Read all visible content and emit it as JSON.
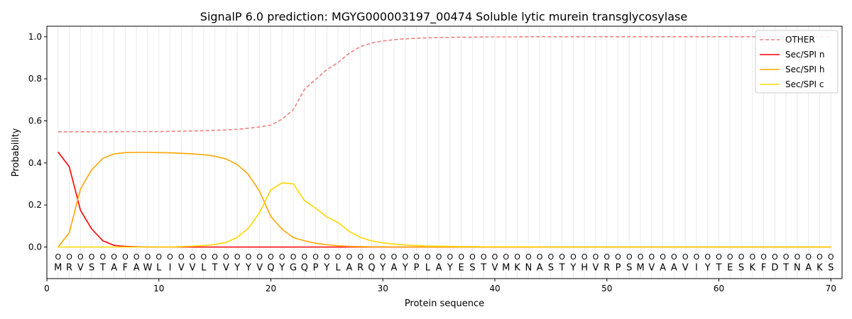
{
  "chart_data": {
    "type": "line",
    "title": "SignalP 6.0 prediction: MGYG000003197_00474 Soluble lytic murein transglycosylase",
    "xlabel": "Protein sequence",
    "ylabel": "Probability",
    "xlim": [
      0,
      71
    ],
    "ylim": [
      -0.15,
      1.05
    ],
    "x_ticks": [
      0,
      10,
      20,
      30,
      40,
      50,
      60,
      70
    ],
    "y_ticks": [
      0.0,
      0.2,
      0.4,
      0.6,
      0.8,
      1.0
    ],
    "y_tick_labels": [
      "0.0",
      "0.2",
      "0.4",
      "0.6",
      "0.8",
      "1.0"
    ],
    "grid": "vertical lines at each residue",
    "legend_position": "top-right",
    "sequence": [
      "M",
      "R",
      "V",
      "S",
      "T",
      "A",
      "F",
      "A",
      "W",
      "L",
      "I",
      "V",
      "V",
      "L",
      "T",
      "V",
      "Y",
      "Y",
      "V",
      "Q",
      "Y",
      "G",
      "Q",
      "P",
      "Y",
      "L",
      "A",
      "R",
      "Q",
      "Y",
      "A",
      "Y",
      "P",
      "L",
      "A",
      "Y",
      "E",
      "S",
      "T",
      "V",
      "M",
      "K",
      "N",
      "A",
      "S",
      "T",
      "Y",
      "H",
      "V",
      "R",
      "P",
      "S",
      "M",
      "V",
      "A",
      "A",
      "V",
      "I",
      "Y",
      "T",
      "E",
      "S",
      "K",
      "F",
      "D",
      "T",
      "N",
      "A",
      "K",
      "S"
    ],
    "region_labels": [
      "O",
      "O",
      "O",
      "O",
      "O",
      "O",
      "O",
      "O",
      "O",
      "O",
      "O",
      "O",
      "O",
      "O",
      "O",
      "O",
      "O",
      "O",
      "O",
      "O",
      "O",
      "O",
      "O",
      "O",
      "O",
      "O",
      "O",
      "O",
      "O",
      "O",
      "O",
      "O",
      "O",
      "O",
      "O",
      "O",
      "O",
      "O",
      "O",
      "O",
      "O",
      "O",
      "O",
      "O",
      "O",
      "O",
      "O",
      "O",
      "O",
      "O",
      "O",
      "O",
      "O",
      "O",
      "O",
      "O",
      "O",
      "O",
      "O",
      "O",
      "O",
      "O",
      "O",
      "O",
      "O",
      "O",
      "O",
      "O",
      "O",
      "O"
    ],
    "series": [
      {
        "name": "OTHER",
        "color": "#f08080",
        "dash": true,
        "values": [
          0.548,
          0.548,
          0.548,
          0.548,
          0.548,
          0.548,
          0.549,
          0.549,
          0.549,
          0.549,
          0.55,
          0.551,
          0.552,
          0.553,
          0.555,
          0.557,
          0.56,
          0.565,
          0.571,
          0.58,
          0.608,
          0.653,
          0.75,
          0.797,
          0.844,
          0.877,
          0.922,
          0.953,
          0.97,
          0.98,
          0.986,
          0.99,
          0.993,
          0.995,
          0.996,
          0.997,
          0.998,
          0.998,
          0.999,
          0.999,
          0.999,
          0.999,
          1.0,
          1.0,
          1.0,
          1.0,
          1.0,
          1.0,
          1.0,
          1.0,
          1.0,
          1.0,
          1.0,
          1.0,
          1.0,
          1.0,
          1.0,
          1.0,
          1.0,
          1.0,
          1.0,
          1.0,
          1.0,
          1.0,
          1.0,
          1.0,
          1.0,
          1.0,
          1.0,
          1.0
        ]
      },
      {
        "name": "Sec/SPI n",
        "color": "#ff0000",
        "dash": false,
        "values": [
          0.452,
          0.382,
          0.175,
          0.086,
          0.03,
          0.008,
          0.003,
          0.001,
          0.0,
          0.0,
          0.0,
          0.0,
          0.0,
          0.0,
          0.0,
          0.0,
          0.0,
          0.0,
          0.0,
          0.0,
          0.0,
          0.0,
          0.0,
          0.0,
          0.0,
          0.0,
          0.0,
          0.0,
          0.0,
          0.0,
          0.0,
          0.0,
          0.0,
          0.0,
          0.0,
          0.0,
          0.0,
          0.0,
          0.0,
          0.0,
          0.0,
          0.0,
          0.0,
          0.0,
          0.0,
          0.0,
          0.0,
          0.0,
          0.0,
          0.0,
          0.0,
          0.0,
          0.0,
          0.0,
          0.0,
          0.0,
          0.0,
          0.0,
          0.0,
          0.0,
          0.0,
          0.0,
          0.0,
          0.0,
          0.0,
          0.0,
          0.0,
          0.0,
          0.0,
          0.0
        ]
      },
      {
        "name": "Sec/SPI h",
        "color": "#ffa500",
        "dash": false,
        "values": [
          0.0,
          0.068,
          0.276,
          0.367,
          0.422,
          0.443,
          0.449,
          0.45,
          0.45,
          0.449,
          0.448,
          0.446,
          0.443,
          0.439,
          0.432,
          0.419,
          0.392,
          0.345,
          0.264,
          0.145,
          0.085,
          0.045,
          0.03,
          0.018,
          0.011,
          0.006,
          0.003,
          0.002,
          0.001,
          0.001,
          0.0,
          0.0,
          0.0,
          0.0,
          0.0,
          0.0,
          0.0,
          0.0,
          0.0,
          0.0,
          0.0,
          0.0,
          0.0,
          0.0,
          0.0,
          0.0,
          0.0,
          0.0,
          0.0,
          0.0,
          0.0,
          0.0,
          0.0,
          0.0,
          0.0,
          0.0,
          0.0,
          0.0,
          0.0,
          0.0,
          0.0,
          0.0,
          0.0,
          0.0,
          0.0,
          0.0,
          0.0,
          0.0,
          0.0,
          0.0
        ]
      },
      {
        "name": "Sec/SPI c",
        "color": "#ffd700",
        "dash": false,
        "values": [
          0.0,
          0.0,
          0.0,
          0.0,
          0.0,
          0.0,
          0.0,
          0.0,
          0.0,
          0.0,
          0.0,
          0.002,
          0.004,
          0.007,
          0.012,
          0.022,
          0.046,
          0.09,
          0.165,
          0.272,
          0.305,
          0.301,
          0.221,
          0.185,
          0.143,
          0.117,
          0.074,
          0.046,
          0.029,
          0.02,
          0.014,
          0.01,
          0.007,
          0.005,
          0.004,
          0.003,
          0.002,
          0.002,
          0.001,
          0.001,
          0.001,
          0.001,
          0.001,
          0.0,
          0.0,
          0.0,
          0.0,
          0.0,
          0.0,
          0.0,
          0.0,
          0.0,
          0.0,
          0.0,
          0.0,
          0.0,
          0.0,
          0.0,
          0.0,
          0.0,
          0.0,
          0.0,
          0.0,
          0.0,
          0.0,
          0.0,
          0.0,
          0.0,
          0.0,
          0.0
        ]
      }
    ]
  }
}
